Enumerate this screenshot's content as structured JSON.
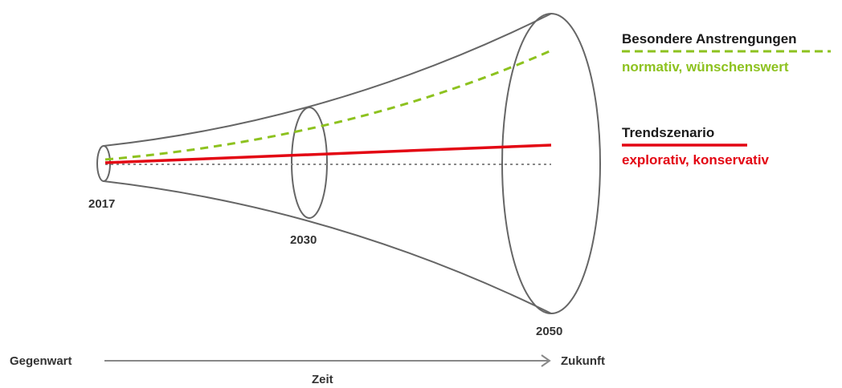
{
  "timeline": {
    "years": [
      "2017",
      "2030",
      "2050"
    ],
    "axis": {
      "start_label": "Gegenwart",
      "end_label": "Zukunft",
      "caption": "Zeit"
    }
  },
  "legend": {
    "special_effort": {
      "title": "Besondere Anstrengungen",
      "subtitle": "normativ, wünschenswert",
      "color": "#8dc21f"
    },
    "trend": {
      "title": "Trendszenario",
      "subtitle": "explorativ, konservativ",
      "color": "#e30613"
    }
  },
  "colors": {
    "outline": "#666666",
    "baseline": "#888888",
    "text": "#333333"
  }
}
